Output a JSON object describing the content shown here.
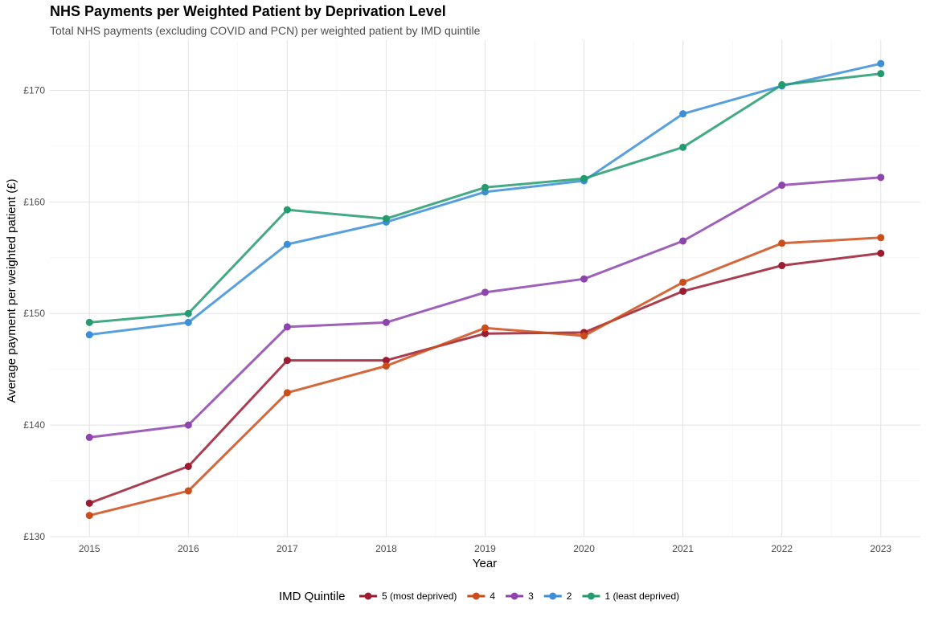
{
  "chart_data": {
    "type": "line",
    "title": "NHS Payments per Weighted Patient by Deprivation Level",
    "subtitle": "Total NHS payments (excluding COVID and PCN) per weighted patient by IMD quintile",
    "xlabel": "Year",
    "ylabel": "Average payment per weighted patient (£)",
    "x": [
      2015,
      2016,
      2017,
      2018,
      2019,
      2020,
      2021,
      2022,
      2023
    ],
    "y_ticks": [
      "£130",
      "£140",
      "£150",
      "£160",
      "£170"
    ],
    "y_tick_values": [
      130,
      140,
      150,
      160,
      170
    ],
    "ylim": [
      130,
      174.5
    ],
    "grid": true,
    "legend": {
      "title": "IMD Quintile",
      "position": "bottom"
    },
    "series": [
      {
        "name": "5 (most deprived)",
        "color": "#9b1b30",
        "values": [
          133.0,
          136.3,
          145.8,
          145.8,
          148.2,
          148.3,
          152.0,
          154.3,
          155.4
        ]
      },
      {
        "name": "4",
        "color": "#cc4c1a",
        "values": [
          131.9,
          134.1,
          142.9,
          145.3,
          148.7,
          148.0,
          152.8,
          156.3,
          156.8
        ]
      },
      {
        "name": "3",
        "color": "#8e44ad",
        "values": [
          138.9,
          140.0,
          148.8,
          149.2,
          151.9,
          153.1,
          156.5,
          161.5,
          162.2
        ]
      },
      {
        "name": "2",
        "color": "#3b8ed8",
        "values": [
          148.1,
          149.2,
          156.2,
          158.2,
          160.9,
          161.9,
          167.9,
          170.4,
          172.4
        ]
      },
      {
        "name": "1 (least deprived)",
        "color": "#229b6f",
        "values": [
          149.2,
          150.0,
          159.3,
          158.5,
          161.3,
          162.1,
          164.9,
          170.5,
          171.5
        ]
      }
    ]
  }
}
